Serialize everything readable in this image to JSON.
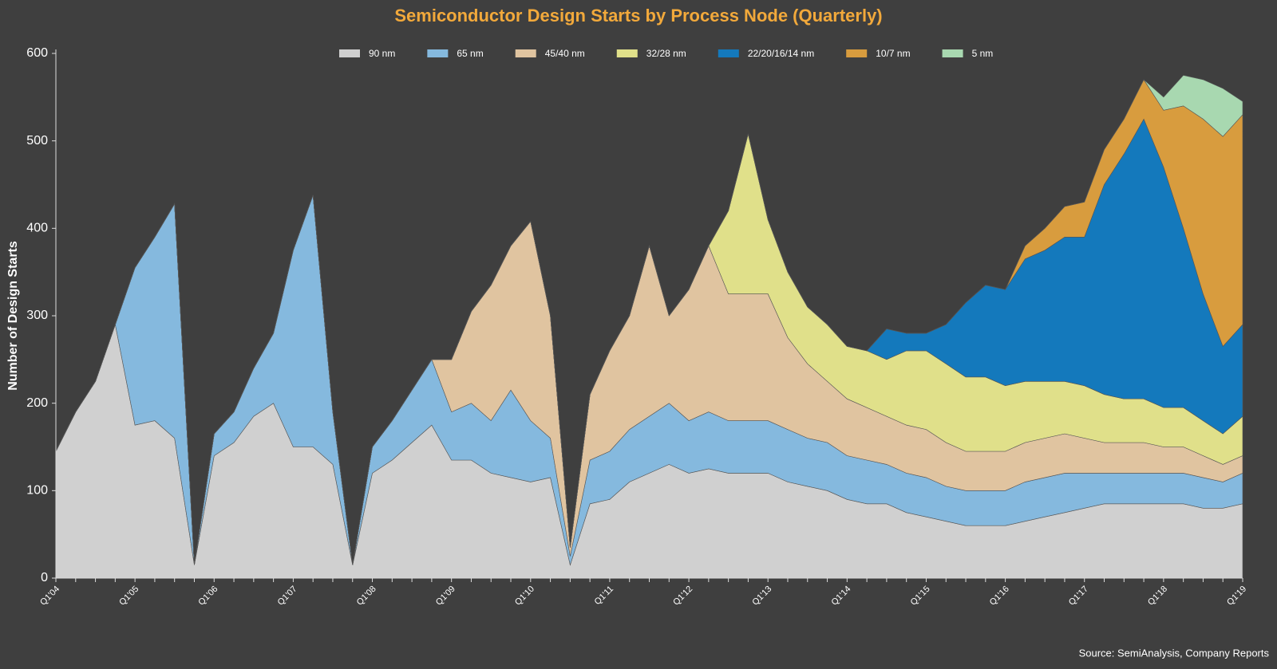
{
  "chart_data": {
    "type": "stacked-area",
    "title": "Semiconductor Design Starts by Process Node (Quarterly)",
    "y_label": "Number of Design Starts",
    "source": "Source: SemiAnalysis, Company Reports",
    "categories": [
      "Q1'04",
      null,
      null,
      null,
      "Q1'05",
      null,
      null,
      null,
      "Q1'06",
      null,
      null,
      null,
      "Q1'07",
      null,
      null,
      null,
      "Q1'08",
      null,
      null,
      null,
      "Q1'09",
      null,
      null,
      null,
      "Q1'10",
      null,
      null,
      null,
      "Q1'11",
      null,
      null,
      null,
      "Q1'12",
      null,
      null,
      null,
      "Q1'13",
      null,
      null,
      null,
      "Q1'14",
      null,
      null,
      null,
      "Q1'15",
      null,
      null,
      null,
      "Q1'16",
      null,
      null,
      null,
      "Q1'17",
      null,
      null,
      null,
      "Q1'18",
      null,
      null,
      null,
      "Q1'19"
    ],
    "ylim": [
      0,
      600
    ],
    "yticks": [
      0,
      100,
      200,
      300,
      400,
      500,
      600
    ],
    "series": [
      {
        "name": "90 nm",
        "color": "#d0d0d0",
        "values": [
          145,
          190,
          225,
          290,
          175,
          180,
          160,
          15,
          140,
          155,
          185,
          200,
          150,
          150,
          130,
          15,
          120,
          135,
          155,
          175,
          135,
          135,
          120,
          115,
          110,
          115,
          15,
          85,
          90,
          110,
          120,
          130,
          120,
          125,
          120,
          120,
          120,
          110,
          105,
          100,
          90,
          85,
          85,
          75,
          70,
          65,
          60,
          60,
          60,
          65,
          70,
          75,
          80,
          85,
          85,
          85,
          85,
          85,
          80,
          80,
          85
        ]
      },
      {
        "name": "65 nm",
        "color": "#85b9de",
        "values": [
          0,
          0,
          0,
          0,
          180,
          210,
          268,
          0,
          25,
          35,
          55,
          80,
          225,
          288,
          60,
          0,
          30,
          45,
          60,
          75,
          55,
          65,
          60,
          100,
          70,
          45,
          10,
          50,
          55,
          60,
          65,
          70,
          60,
          65,
          60,
          60,
          60,
          60,
          55,
          55,
          50,
          50,
          45,
          45,
          45,
          40,
          40,
          40,
          40,
          45,
          45,
          45,
          40,
          35,
          35,
          35,
          35,
          35,
          35,
          30,
          35
        ]
      },
      {
        "name": "45/40 nm",
        "color": "#e0c4a0",
        "values": [
          0,
          0,
          0,
          0,
          0,
          0,
          0,
          0,
          0,
          0,
          0,
          0,
          0,
          0,
          0,
          0,
          0,
          0,
          0,
          0,
          60,
          105,
          155,
          165,
          228,
          140,
          10,
          75,
          115,
          130,
          195,
          100,
          150,
          190,
          145,
          145,
          145,
          105,
          85,
          70,
          65,
          60,
          55,
          55,
          55,
          50,
          45,
          45,
          45,
          45,
          45,
          45,
          40,
          35,
          35,
          35,
          30,
          30,
          25,
          20,
          20
        ]
      },
      {
        "name": "32/28 nm",
        "color": "#e0e08a",
        "values": [
          0,
          0,
          0,
          0,
          0,
          0,
          0,
          0,
          0,
          0,
          0,
          0,
          0,
          0,
          0,
          0,
          0,
          0,
          0,
          0,
          0,
          0,
          0,
          0,
          0,
          0,
          0,
          0,
          0,
          0,
          0,
          0,
          0,
          0,
          95,
          183,
          85,
          75,
          65,
          65,
          60,
          65,
          65,
          85,
          90,
          90,
          85,
          85,
          75,
          70,
          65,
          60,
          60,
          55,
          50,
          50,
          45,
          45,
          40,
          35,
          45
        ]
      },
      {
        "name": "22/20/16/14 nm",
        "color": "#1479bc",
        "values": [
          0,
          0,
          0,
          0,
          0,
          0,
          0,
          0,
          0,
          0,
          0,
          0,
          0,
          0,
          0,
          0,
          0,
          0,
          0,
          0,
          0,
          0,
          0,
          0,
          0,
          0,
          0,
          0,
          0,
          0,
          0,
          0,
          0,
          0,
          0,
          0,
          0,
          0,
          0,
          0,
          0,
          0,
          35,
          20,
          20,
          45,
          85,
          105,
          110,
          140,
          150,
          165,
          170,
          240,
          280,
          320,
          275,
          205,
          145,
          100,
          105
        ]
      },
      {
        "name": "10/7 nm",
        "color": "#d89c3e",
        "values": [
          0,
          0,
          0,
          0,
          0,
          0,
          0,
          0,
          0,
          0,
          0,
          0,
          0,
          0,
          0,
          0,
          0,
          0,
          0,
          0,
          0,
          0,
          0,
          0,
          0,
          0,
          0,
          0,
          0,
          0,
          0,
          0,
          0,
          0,
          0,
          0,
          0,
          0,
          0,
          0,
          0,
          0,
          0,
          0,
          0,
          0,
          0,
          0,
          0,
          15,
          25,
          35,
          40,
          40,
          40,
          45,
          65,
          140,
          200,
          240,
          240
        ]
      },
      {
        "name": "5 nm",
        "color": "#a8d8b0",
        "values": [
          0,
          0,
          0,
          0,
          0,
          0,
          0,
          0,
          0,
          0,
          0,
          0,
          0,
          0,
          0,
          0,
          0,
          0,
          0,
          0,
          0,
          0,
          0,
          0,
          0,
          0,
          0,
          0,
          0,
          0,
          0,
          0,
          0,
          0,
          0,
          0,
          0,
          0,
          0,
          0,
          0,
          0,
          0,
          0,
          0,
          0,
          0,
          0,
          0,
          0,
          0,
          0,
          0,
          0,
          0,
          0,
          15,
          35,
          45,
          55,
          15
        ]
      }
    ]
  }
}
